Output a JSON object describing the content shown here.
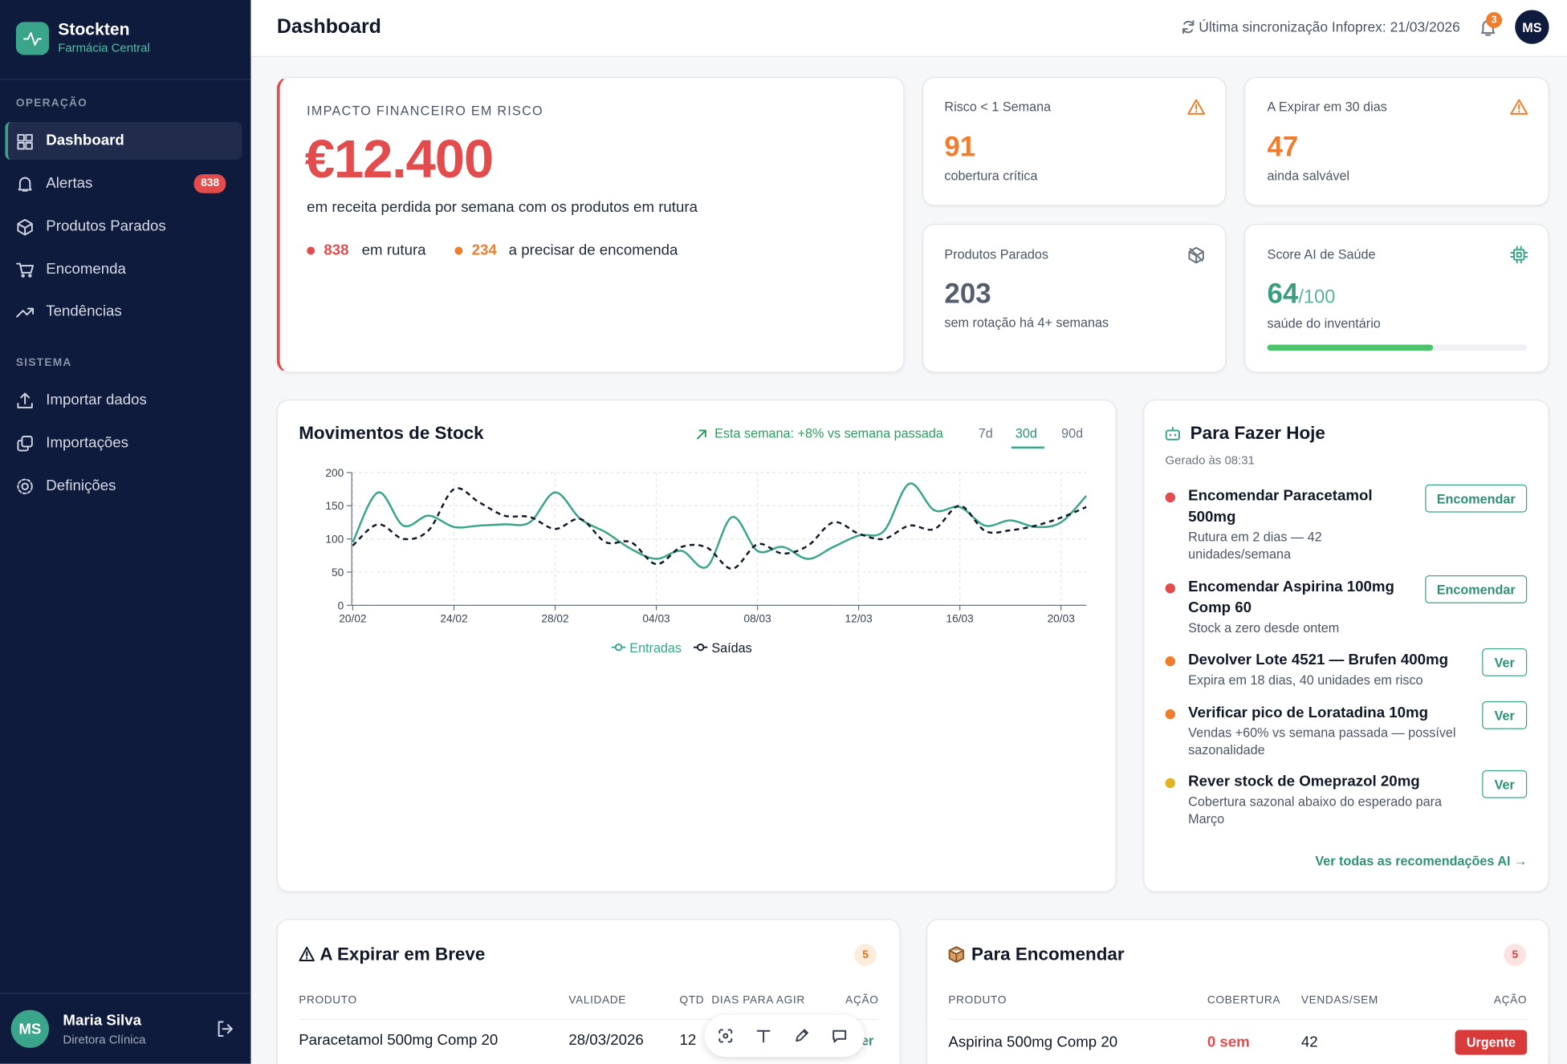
{
  "sidebar": {
    "brand": "Stockten",
    "subtitle": "Farmácia Central",
    "sections": [
      {
        "title": "OPERAÇÃO",
        "items": [
          "Dashboard",
          "Alertas",
          "Produtos Parados",
          "Encomenda",
          "Tendências"
        ]
      },
      {
        "title": "SISTEMA",
        "items": [
          "Importar dados",
          "Importações",
          "Definições"
        ]
      }
    ],
    "alerts_badge": "838",
    "user": {
      "initials": "MS",
      "name": "Maria Silva",
      "role": "Diretora Clínica"
    }
  },
  "header": {
    "title": "Dashboard",
    "sync": "Última sincronização Infoprex: 21/03/2026",
    "notifications": "3",
    "avatar": "MS"
  },
  "impact": {
    "label": "IMPACTO FINANCEIRO EM RISCO",
    "value": "€12.400",
    "description": "em receita perdida por semana com os produtos em rutura",
    "stats": [
      {
        "value": "838",
        "label": "em rutura"
      },
      {
        "value": "234",
        "label": "a precisar de encomenda"
      }
    ]
  },
  "kpis": [
    {
      "title": "Risco < 1 Semana",
      "value": "91",
      "caption": "cobertura crítica"
    },
    {
      "title": "A Expirar em 30 dias",
      "value": "47",
      "caption": "ainda salvável"
    },
    {
      "title": "Produtos Parados",
      "value": "203",
      "caption": "sem rotação há 4+ semanas"
    },
    {
      "title": "Score AI de Saúde",
      "value": "64",
      "suffix": "/100",
      "caption": "saúde do inventário"
    }
  ],
  "chart_data": {
    "type": "line",
    "title": "Movimentos de Stock",
    "trend": "Esta semana: +8% vs semana passada",
    "ranges": [
      "7d",
      "30d",
      "90d"
    ],
    "x": [
      "20/02",
      null,
      null,
      null,
      "24/02",
      null,
      null,
      null,
      "28/02",
      null,
      null,
      null,
      "04/03",
      null,
      null,
      null,
      "08/03",
      null,
      null,
      null,
      "12/03",
      null,
      null,
      null,
      "16/03",
      null,
      null,
      null,
      "20/03",
      null
    ],
    "series": [
      {
        "name": "Entradas",
        "color": "#3aa58a",
        "dashed": false,
        "values": [
          95,
          170,
          120,
          135,
          118,
          120,
          122,
          125,
          170,
          130,
          110,
          85,
          70,
          82,
          58,
          133,
          82,
          88,
          70,
          88,
          105,
          112,
          183,
          143,
          148,
          120,
          128,
          118,
          125,
          165
        ]
      },
      {
        "name": "Saídas",
        "color": "#111827",
        "dashed": true,
        "values": [
          90,
          122,
          100,
          113,
          175,
          155,
          135,
          133,
          115,
          130,
          95,
          95,
          62,
          88,
          87,
          55,
          92,
          78,
          90,
          125,
          108,
          100,
          120,
          115,
          150,
          112,
          113,
          120,
          132,
          148
        ]
      }
    ],
    "ylim": [
      0,
      200
    ],
    "yticks": [
      0,
      50,
      100,
      150,
      200
    ],
    "grid": true
  },
  "todo": {
    "title": "Para Fazer Hoje",
    "generated": "Gerado às 08:31",
    "items": [
      {
        "title": "Encomendar Paracetamol 500mg",
        "detail": "Rutura em 2 dias — 42 unidades/semana",
        "action": "Encomendar",
        "color": "#e24c4c"
      },
      {
        "title": "Encomendar Aspirina 100mg Comp 60",
        "detail": "Stock a zero desde ontem",
        "action": "Encomendar",
        "color": "#e24c4c"
      },
      {
        "title": "Devolver Lote 4521 — Brufen 400mg",
        "detail": "Expira em 18 dias, 40 unidades em risco",
        "action": "Ver",
        "color": "#ef7d2d"
      },
      {
        "title": "Verificar pico de Loratadina 10mg",
        "detail": "Vendas +60% vs semana passada — possível sazonalidade",
        "action": "Ver",
        "color": "#ef7d2d"
      },
      {
        "title": "Rever stock de Omeprazol 20mg",
        "detail": "Cobertura sazonal abaixo do esperado para Março",
        "action": "Ver",
        "color": "#e3b324"
      }
    ],
    "footer": "Ver todas as recomendações AI →"
  },
  "expiring": {
    "title": "A Expirar em Breve",
    "count": "5",
    "columns": [
      "PRODUTO",
      "VALIDADE",
      "QTD",
      "DIAS PARA AGIR",
      "AÇÃO"
    ],
    "rows": [
      {
        "product": "Paracetamol 500mg Comp 20",
        "validity": "28/03/2026",
        "qty": "12",
        "action": "Ver"
      }
    ]
  },
  "orders": {
    "title": "Para Encomendar",
    "count": "5",
    "columns": [
      "PRODUTO",
      "COBERTURA",
      "VENDAS/SEM",
      "AÇÃO"
    ],
    "rows": [
      {
        "product": "Aspirina 500mg Comp 20",
        "coverage": "0 sem",
        "sales": "42",
        "action": "Urgente"
      }
    ]
  }
}
